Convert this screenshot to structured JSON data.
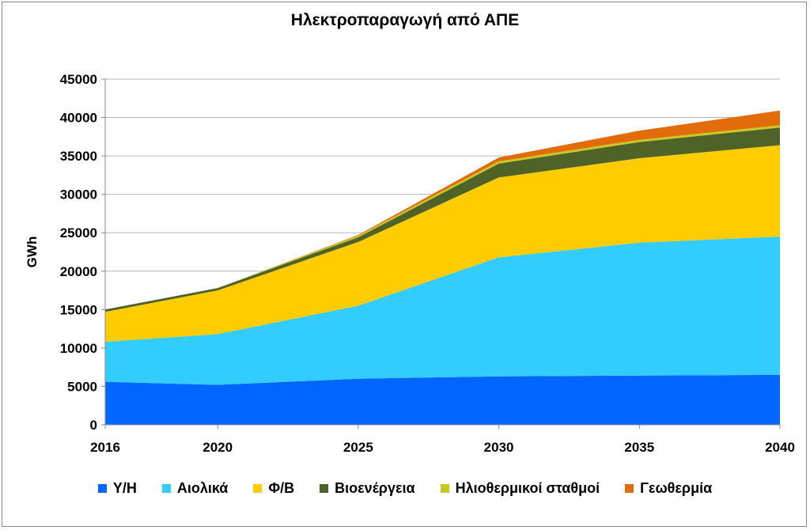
{
  "chart_data": {
    "type": "area",
    "stacked": true,
    "title": "Ηλεκτροπαραγωγή από ΑΠΕ",
    "xlabel": "",
    "ylabel": "GWh",
    "x": [
      "2016",
      "2020",
      "2025",
      "2030",
      "2035",
      "2040"
    ],
    "x_values": [
      2016,
      2020,
      2025,
      2030,
      2035,
      2040
    ],
    "ylim": [
      0,
      45000
    ],
    "yticks": [
      "0",
      "5000",
      "10000",
      "15000",
      "20000",
      "25000",
      "30000",
      "35000",
      "40000",
      "45000"
    ],
    "grid": true,
    "legend_position": "bottom",
    "series": [
      {
        "name": "Υ/Η",
        "color": "#0066ff",
        "values": [
          5600,
          5200,
          6000,
          6300,
          6400,
          6500
        ]
      },
      {
        "name": "Αιολικά",
        "color": "#33ccff",
        "values": [
          5200,
          6600,
          9500,
          15500,
          17300,
          18000
        ]
      },
      {
        "name": "Φ/Β",
        "color": "#ffcc00",
        "values": [
          3900,
          5700,
          8300,
          10400,
          11000,
          11900
        ]
      },
      {
        "name": "Βιοενέργεια",
        "color": "#4f6228",
        "values": [
          300,
          300,
          600,
          1800,
          2100,
          2300
        ]
      },
      {
        "name": "Ηλιοθερμικοί σταθμοί",
        "color": "#c8c81e",
        "values": [
          0,
          0,
          200,
          300,
          300,
          300
        ]
      },
      {
        "name": "Γεωθερμία",
        "color": "#e36c0a",
        "values": [
          0,
          0,
          100,
          500,
          1200,
          1900
        ]
      }
    ]
  }
}
